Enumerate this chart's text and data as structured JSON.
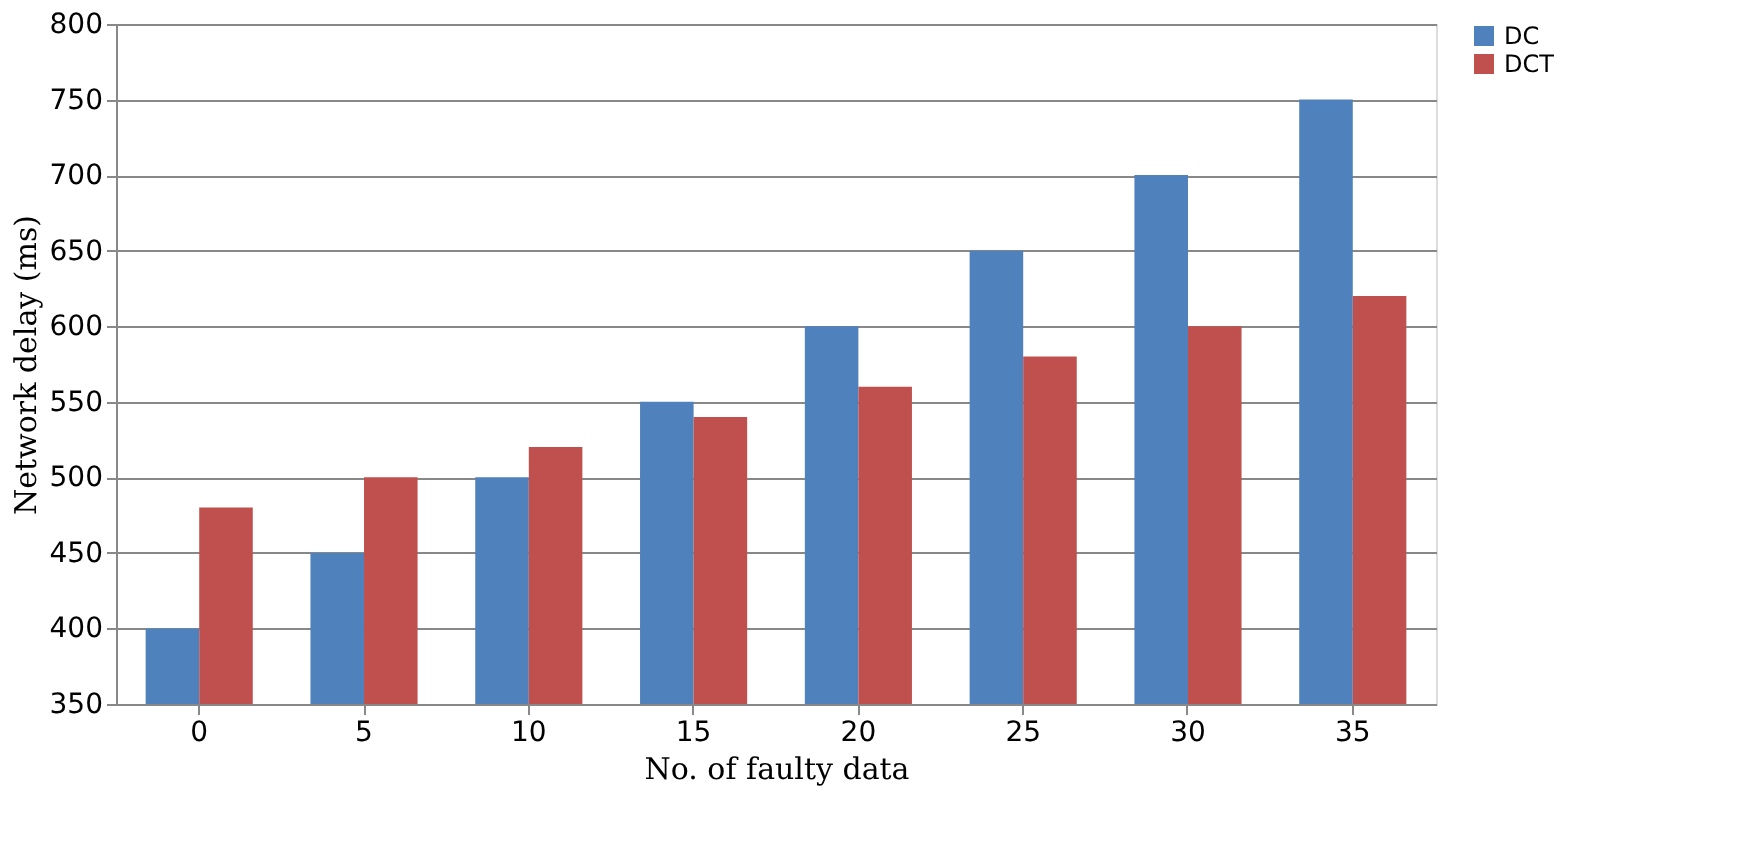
{
  "chart_data": {
    "type": "bar",
    "xlabel": "No. of faulty data",
    "ylabel": "Network delay (ms)",
    "categories": [
      "0",
      "5",
      "10",
      "15",
      "20",
      "25",
      "30",
      "35"
    ],
    "series": [
      {
        "name": "DC",
        "color": "#4f81bd",
        "values": [
          400,
          450,
          500,
          550,
          600,
          650,
          700,
          750
        ]
      },
      {
        "name": "DCT",
        "color": "#c0504d",
        "values": [
          480,
          500,
          520,
          540,
          560,
          580,
          600,
          620
        ]
      }
    ],
    "ylim": [
      350,
      800
    ],
    "yticks": [
      350,
      400,
      450,
      500,
      550,
      600,
      650,
      700,
      750,
      800
    ],
    "grid": "y",
    "legend": "right"
  }
}
